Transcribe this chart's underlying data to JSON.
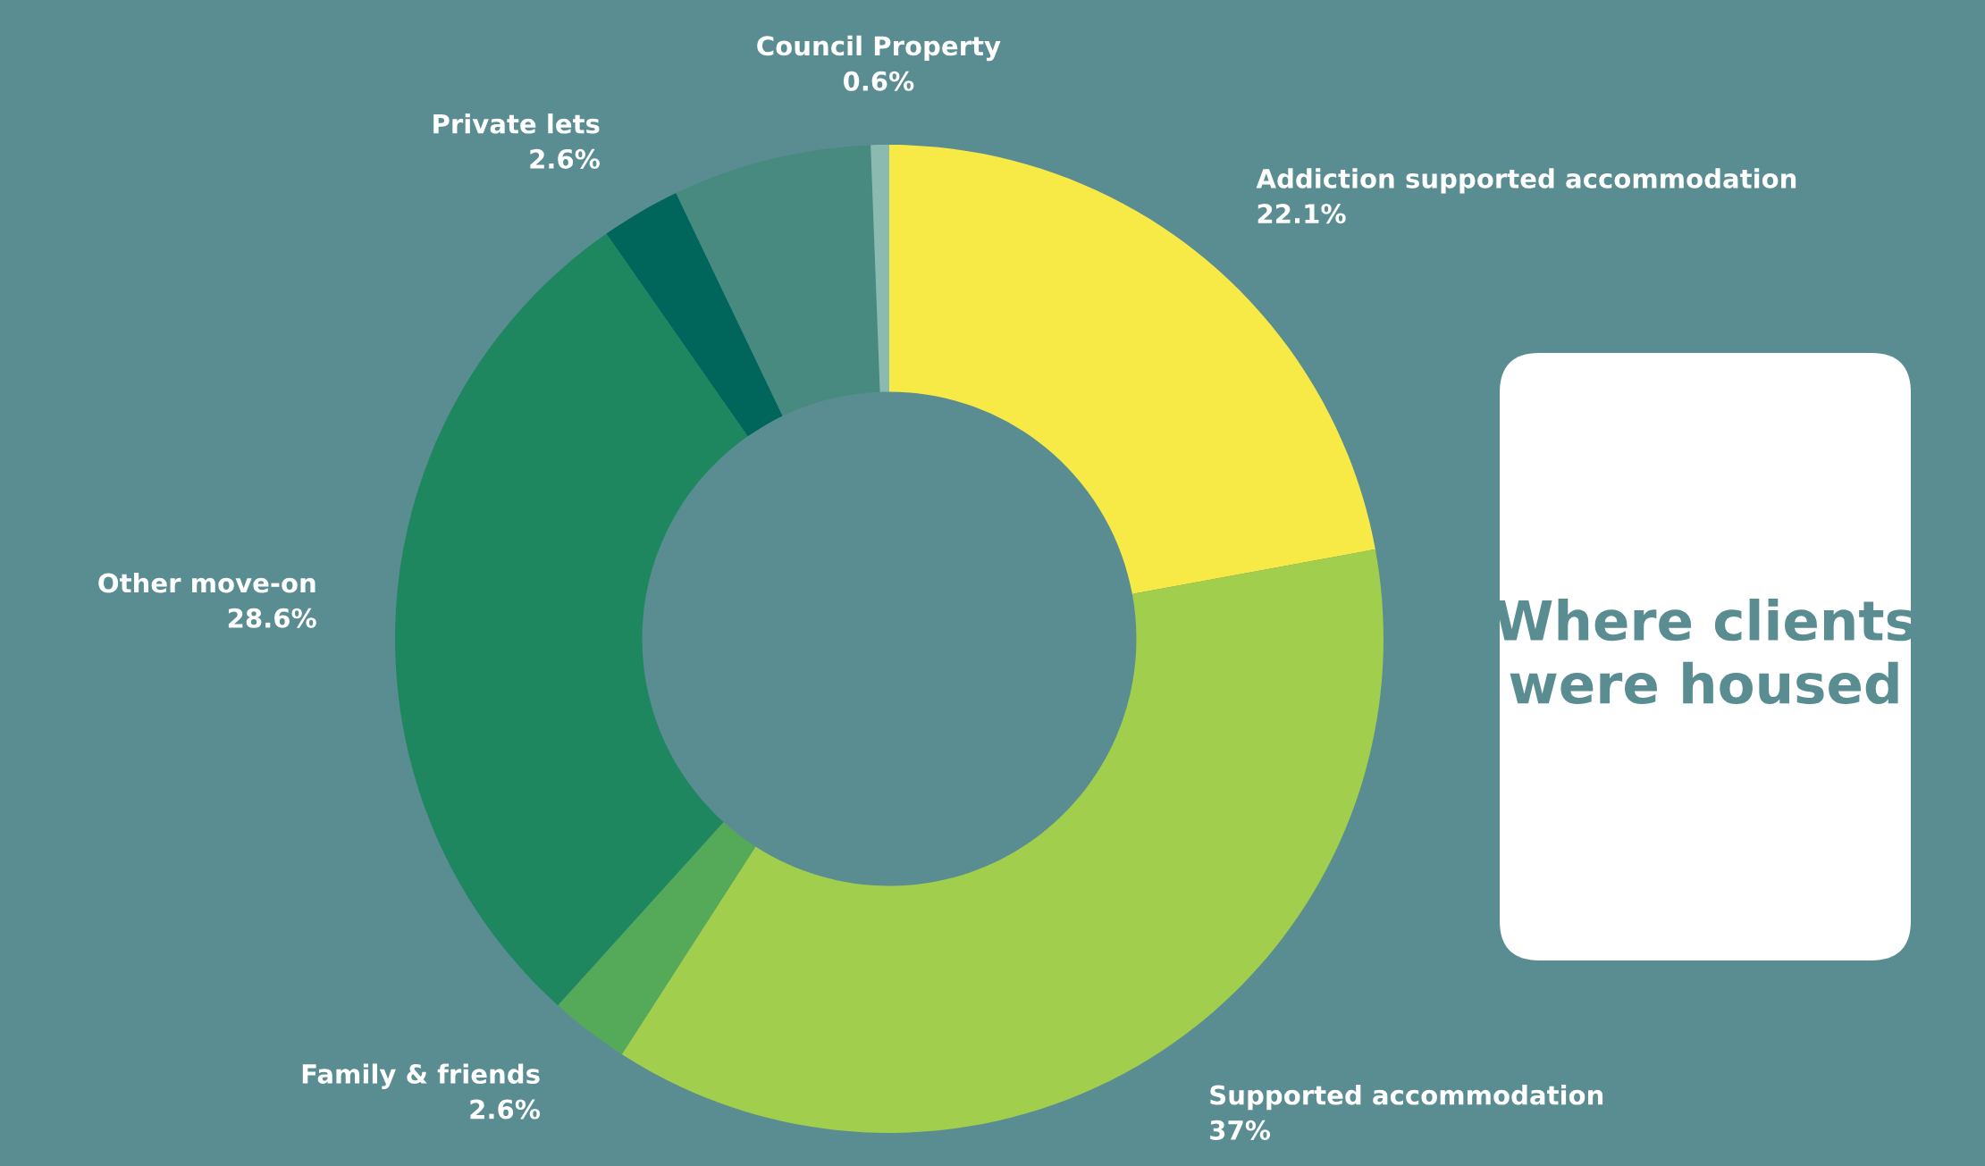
{
  "chart_data": {
    "type": "donut",
    "title": "Where clients were housed",
    "categories": [
      "Addiction supported accommodation",
      "Supported accommodation",
      "Family & friends",
      "Other move-on",
      "Private lets",
      null,
      "Council Property"
    ],
    "values": [
      22.1,
      37,
      2.6,
      28.6,
      2.6,
      6.5,
      0.6
    ],
    "value_labels": [
      "22.1%",
      "37%",
      "2.6%",
      "28.6%",
      "2.6%",
      null,
      "0.6%"
    ],
    "colors": [
      "#f7e946",
      "#a1ce4c",
      "#55aa5a",
      "#1f8760",
      "#00655a",
      "#488a80",
      "#8bbab0"
    ],
    "legend": false
  }
}
